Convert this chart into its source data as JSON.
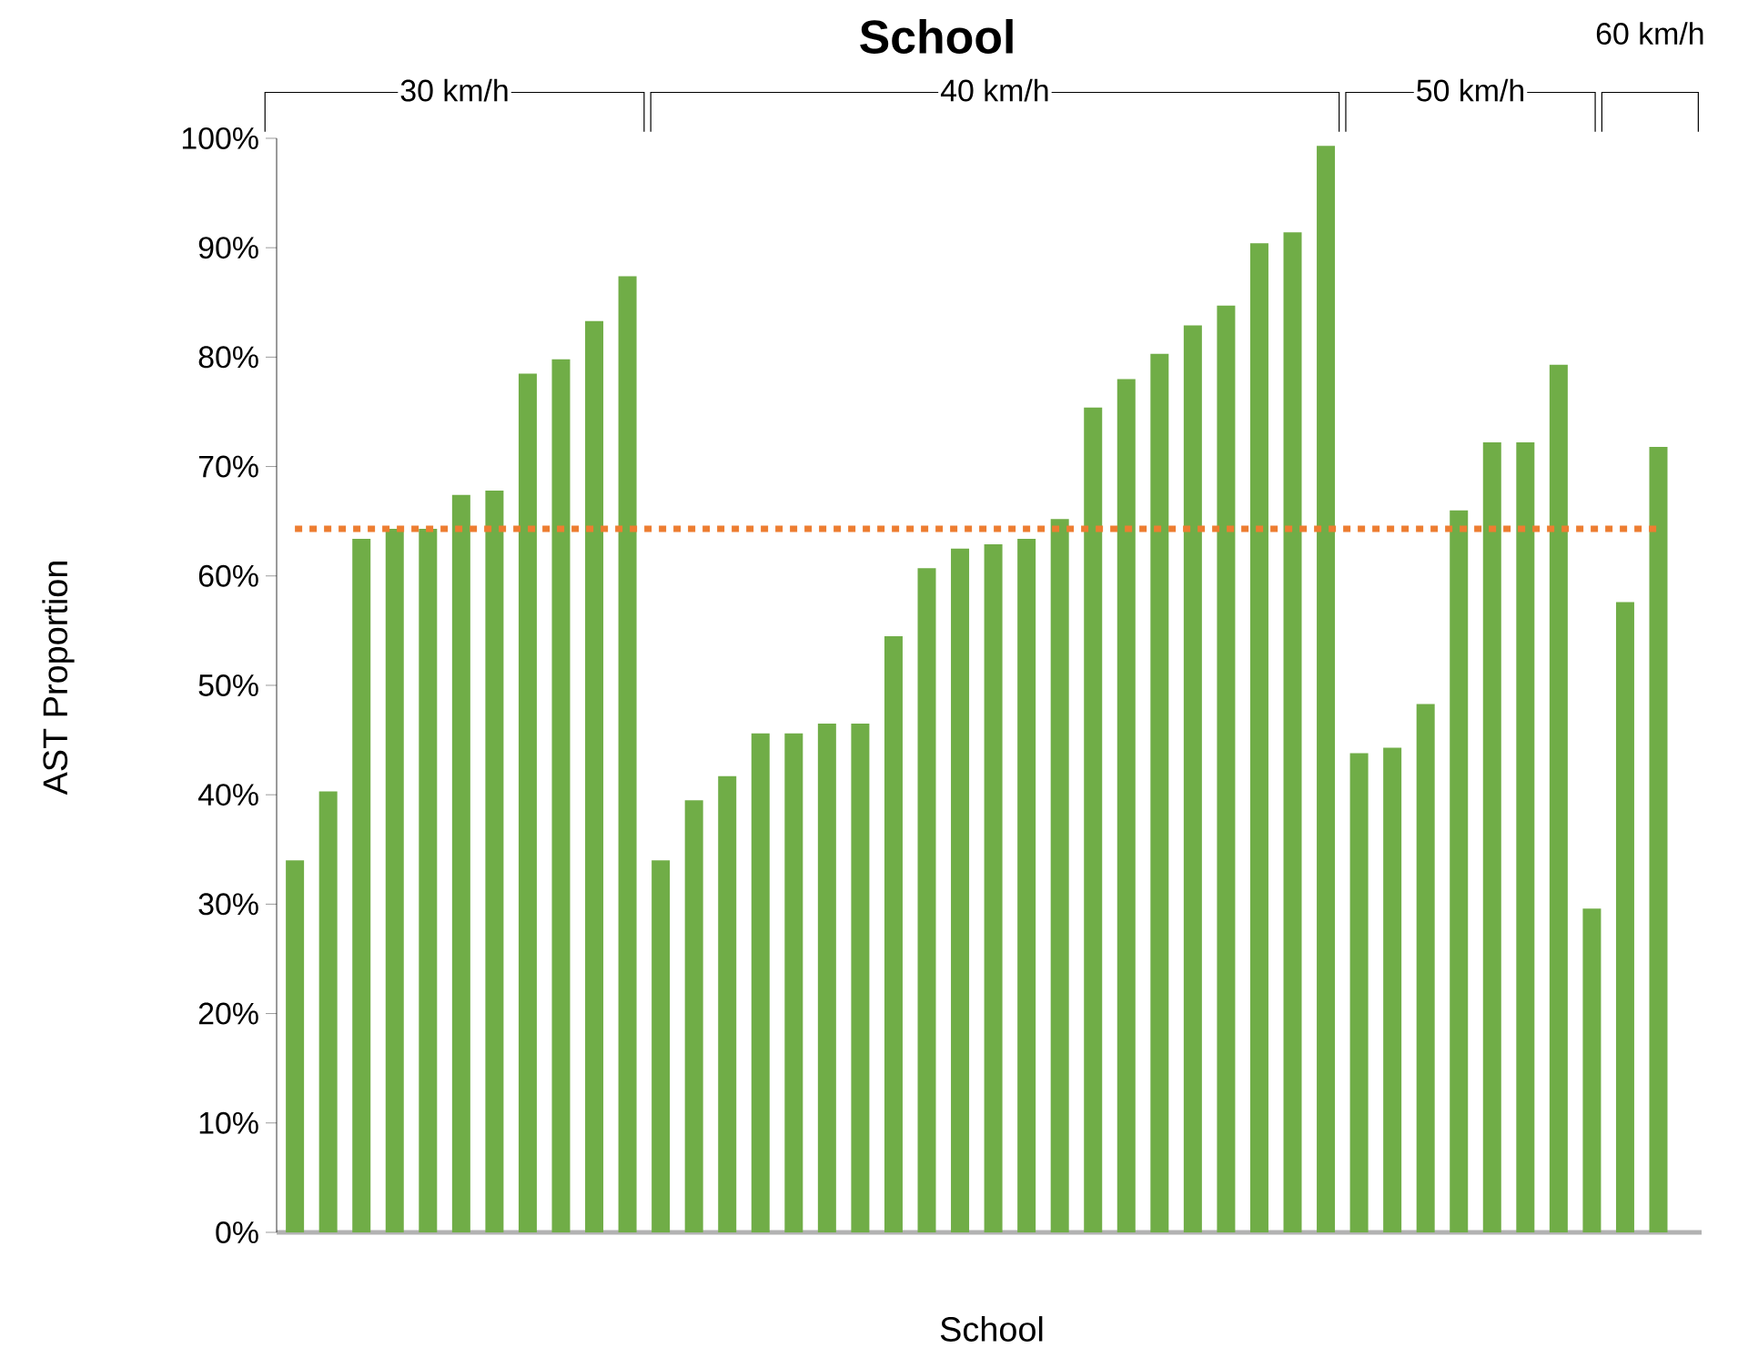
{
  "chart_data": {
    "type": "bar",
    "title": "School",
    "xlabel": "School",
    "ylabel": "AST Proportion",
    "categories": [
      null,
      null,
      null,
      null,
      null,
      null,
      null,
      null,
      null,
      null,
      null,
      null,
      null,
      null,
      null,
      null,
      null,
      null,
      null,
      null,
      null,
      null,
      null,
      null,
      null,
      null,
      null,
      null,
      null,
      null,
      null,
      null,
      null,
      null,
      null,
      null,
      null,
      null,
      null,
      null,
      null,
      null
    ],
    "values": [
      34.0,
      40.3,
      63.4,
      64.3,
      64.3,
      67.4,
      67.8,
      78.5,
      79.8,
      83.3,
      87.4,
      34.0,
      39.5,
      41.7,
      45.6,
      45.6,
      46.5,
      46.5,
      54.5,
      60.7,
      62.5,
      62.9,
      63.4,
      65.2,
      75.4,
      78.0,
      80.3,
      82.9,
      84.7,
      90.4,
      91.4,
      99.3,
      43.8,
      44.3,
      48.3,
      66.0,
      72.2,
      72.2,
      79.3,
      29.6,
      57.6,
      71.8
    ],
    "color": "#70ad47",
    "ylim": [
      0,
      100
    ],
    "yticks": [
      {
        "value": 0,
        "label": "0%"
      },
      {
        "value": 10,
        "label": "10%"
      },
      {
        "value": 20,
        "label": "20%"
      },
      {
        "value": 30,
        "label": "30%"
      },
      {
        "value": 40,
        "label": "40%"
      },
      {
        "value": 50,
        "label": "50%"
      },
      {
        "value": 60,
        "label": "60%"
      },
      {
        "value": 70,
        "label": "70%"
      },
      {
        "value": 80,
        "label": "80%"
      },
      {
        "value": 90,
        "label": "90%"
      },
      {
        "value": 100,
        "label": "100%"
      }
    ],
    "ref_lines": [
      {
        "axis": "y",
        "value": 64.3,
        "color": "#ed7d31",
        "line_style": "dotted"
      }
    ],
    "annotations": [
      "30 km/h",
      "40 km/h",
      "50 km/h",
      "60 km/h"
    ]
  }
}
